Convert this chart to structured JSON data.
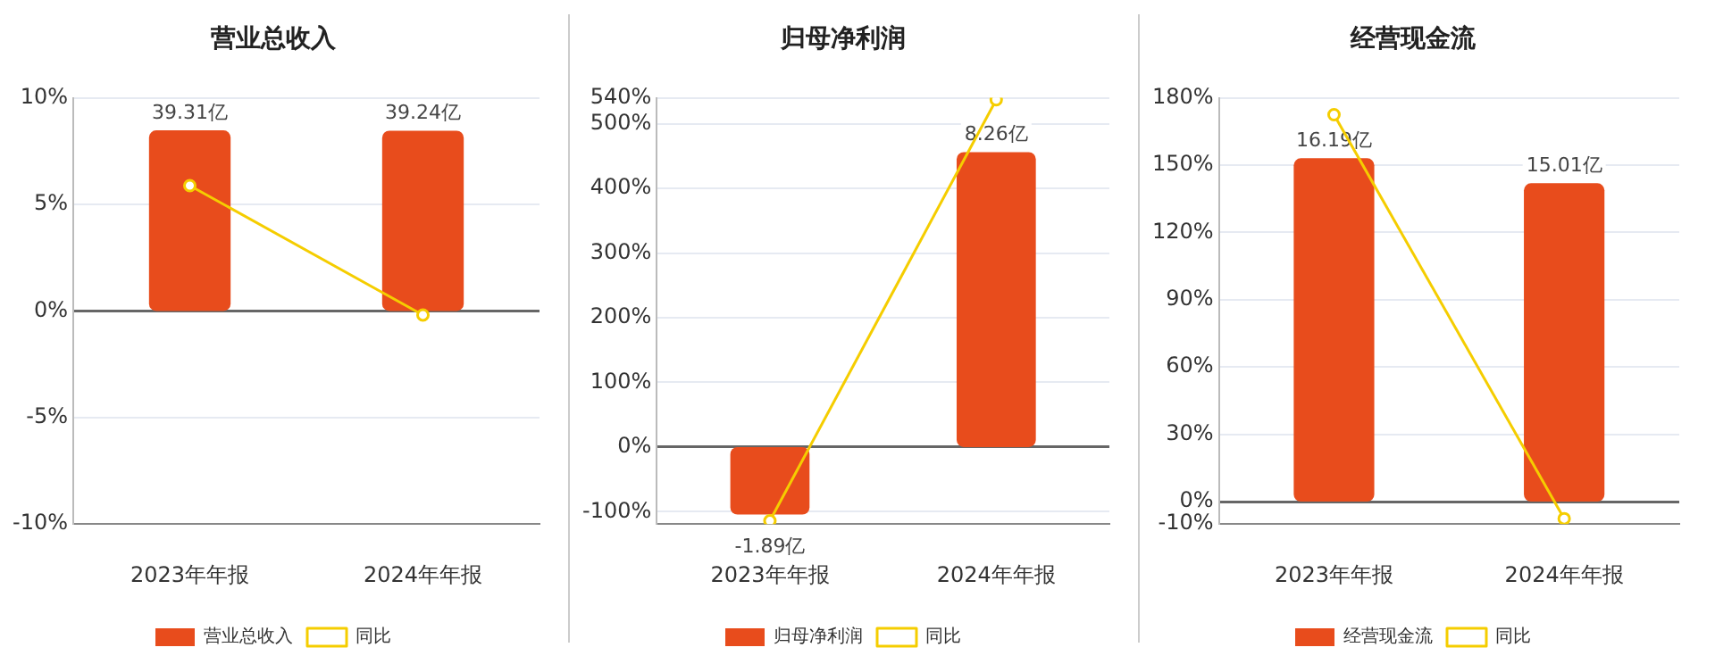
{
  "chart_data": [
    {
      "type": "bar",
      "title": "营业总收入",
      "categories": [
        "2023年年报",
        "2024年年报"
      ],
      "series": [
        {
          "name": "营业总收入",
          "axis": "y2",
          "color": "#e84c1c",
          "values": [
            39.31,
            39.24
          ],
          "value_labels": [
            "39.31亿",
            "39.24亿"
          ]
        },
        {
          "name": "同比",
          "type": "line",
          "color": "#f5cd00",
          "values": [
            5.88,
            -0.19
          ]
        }
      ],
      "ylim": [
        -10,
        10
      ],
      "yticks": [
        {
          "value": -10,
          "label": "-10%"
        },
        {
          "value": -5,
          "label": "-5%"
        },
        {
          "value": 0,
          "label": "0%"
        },
        {
          "value": 5,
          "label": "5%"
        },
        {
          "value": 10,
          "label": "10%"
        }
      ],
      "y2lim": [
        -46.4,
        46.4
      ],
      "grid": "y",
      "legend": "bottom",
      "marker": "circle"
    },
    {
      "type": "bar",
      "title": "归母净利润",
      "categories": [
        "2023年年报",
        "2024年年报"
      ],
      "series": [
        {
          "name": "归母净利润",
          "axis": "y2",
          "color": "#e84c1c",
          "values": [
            -1.89,
            8.26
          ],
          "value_labels": [
            "-1.89亿",
            "8.26亿"
          ]
        },
        {
          "name": "同比",
          "type": "line",
          "color": "#f5cd00",
          "values": [
            -114,
            537
          ]
        }
      ],
      "ylim": [
        -119,
        540
      ],
      "yticks": [
        {
          "value": -100,
          "label": "-100%"
        },
        {
          "value": 0,
          "label": "0%"
        },
        {
          "value": 100,
          "label": "100%"
        },
        {
          "value": 200,
          "label": "200%"
        },
        {
          "value": 300,
          "label": "300%"
        },
        {
          "value": 400,
          "label": "400%"
        },
        {
          "value": 500,
          "label": "500%"
        },
        {
          "value": 540,
          "label": "540%"
        }
      ],
      "y2lim": [
        -2.155,
        9.78
      ],
      "grid": "y",
      "legend": "bottom",
      "marker": "circle"
    },
    {
      "type": "bar",
      "title": "经营现金流",
      "categories": [
        "2023年年报",
        "2024年年报"
      ],
      "series": [
        {
          "name": "经营现金流",
          "axis": "y2",
          "color": "#e84c1c",
          "values": [
            16.19,
            15.01
          ],
          "value_labels": [
            "16.19亿",
            "15.01亿"
          ]
        },
        {
          "name": "同比",
          "type": "line",
          "color": "#f5cd00",
          "values": [
            172.5,
            -7.6
          ]
        }
      ],
      "ylim": [
        -10,
        180
      ],
      "yticks": [
        {
          "value": -10,
          "label": "-10%"
        },
        {
          "value": 0,
          "label": "0%"
        },
        {
          "value": 30,
          "label": "30%"
        },
        {
          "value": 60,
          "label": "60%"
        },
        {
          "value": 90,
          "label": "90%"
        },
        {
          "value": 120,
          "label": "120%"
        },
        {
          "value": 150,
          "label": "150%"
        },
        {
          "value": 180,
          "label": "180%"
        }
      ],
      "y2lim": [
        -1.058,
        19.04
      ],
      "grid": "y",
      "legend": "bottom",
      "marker": "circle"
    }
  ]
}
